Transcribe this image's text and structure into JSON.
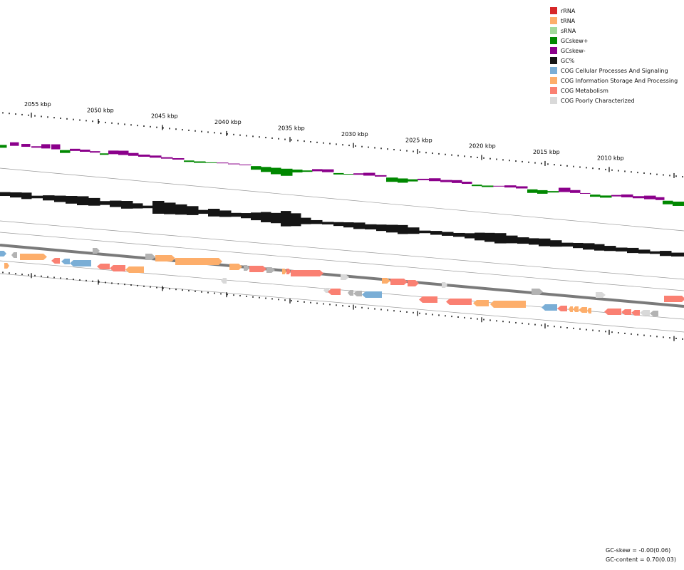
{
  "legend": [
    {
      "label": "rRNA",
      "color": "#d62728"
    },
    {
      "label": "tRNA",
      "color": "#fdae6b"
    },
    {
      "label": "sRNA",
      "color": "#a1d99b"
    },
    {
      "label": "GCskew+",
      "color": "#008800"
    },
    {
      "label": "GCskew-",
      "color": "#8b008b"
    },
    {
      "label": "GC%",
      "color": "#151515"
    },
    {
      "label": "COG Cellular Processes And Signaling",
      "color": "#7aaed6"
    },
    {
      "label": "COG Information Storage And Processing",
      "color": "#fdae6b"
    },
    {
      "label": "COG Metabolism",
      "color": "#fa8072"
    },
    {
      "label": "COG Poorly Characterized",
      "color": "#d9d9d9"
    }
  ],
  "ruler": {
    "unit": "kbp",
    "labels": [
      "2055 kbp",
      "2050 kbp",
      "2045 kbp",
      "2040 kbp",
      "2035 kbp",
      "2030 kbp",
      "2025 kbp",
      "2020 kbp",
      "2015 kbp",
      "2010 kbp"
    ]
  },
  "stats": {
    "gc_skew": "GC-skew = -0.00(0.06)",
    "gc_content": "GC-content = 0.70(0.03)"
  }
}
